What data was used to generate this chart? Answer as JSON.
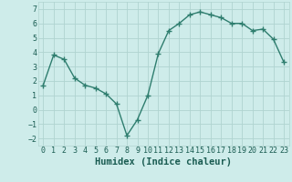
{
  "x": [
    0,
    1,
    2,
    3,
    4,
    5,
    6,
    7,
    8,
    9,
    10,
    11,
    12,
    13,
    14,
    15,
    16,
    17,
    18,
    19,
    20,
    21,
    22,
    23
  ],
  "y": [
    1.7,
    3.8,
    3.5,
    2.2,
    1.7,
    1.5,
    1.1,
    0.4,
    -1.8,
    -0.7,
    1.0,
    3.9,
    5.5,
    6.0,
    6.6,
    6.8,
    6.6,
    6.4,
    6.0,
    6.0,
    5.5,
    5.6,
    4.9,
    3.3
  ],
  "line_color": "#2e7d6e",
  "marker": "+",
  "marker_size": 4,
  "marker_linewidth": 1.0,
  "bg_color": "#ceecea",
  "grid_color": "#b0d4d0",
  "xlabel": "Humidex (Indice chaleur)",
  "xlabel_color": "#1a5c52",
  "tick_color": "#1a5c52",
  "ylim": [
    -2.5,
    7.5
  ],
  "xlim": [
    -0.5,
    23.5
  ],
  "yticks": [
    -2,
    -1,
    0,
    1,
    2,
    3,
    4,
    5,
    6,
    7
  ],
  "xticks": [
    0,
    1,
    2,
    3,
    4,
    5,
    6,
    7,
    8,
    9,
    10,
    11,
    12,
    13,
    14,
    15,
    16,
    17,
    18,
    19,
    20,
    21,
    22,
    23
  ],
  "xlabel_fontsize": 7.5,
  "tick_fontsize": 6.0,
  "linewidth": 1.0
}
